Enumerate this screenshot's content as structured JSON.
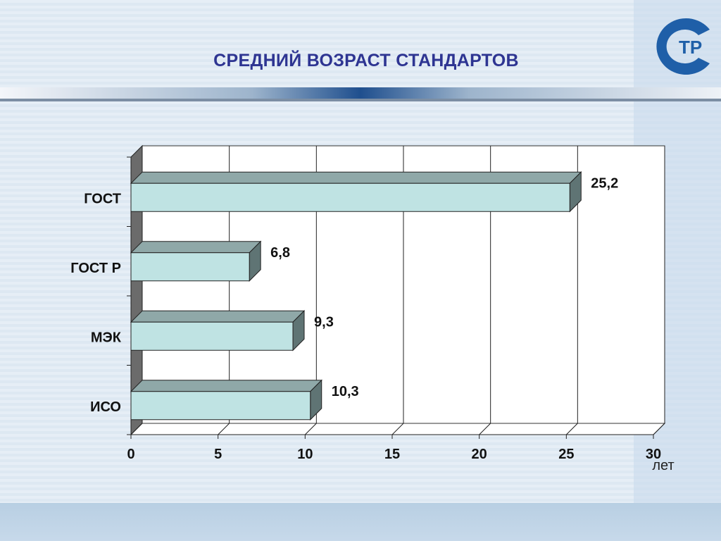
{
  "slide": {
    "title": "СРЕДНИЙ ВОЗРАСТ СТАНДАРТОВ",
    "logo_text": "ТР"
  },
  "colors": {
    "title": "#2e3592",
    "bar_front": "#bfe3e3",
    "bar_top": "#8fa8a8",
    "bar_side": "#5f7474",
    "wall_side": "#6b6b6b",
    "logo": "#1f5fa8"
  },
  "chart_data": {
    "type": "bar",
    "orientation": "horizontal",
    "categories": [
      "ГОСТ",
      "ГОСТ Р",
      "МЭК",
      "ИСО"
    ],
    "values": [
      25.2,
      6.8,
      9.3,
      10.3
    ],
    "value_labels": [
      "25,2",
      "6,8",
      "9,3",
      "10,3"
    ],
    "x_ticks": [
      "0",
      "5",
      "10",
      "15",
      "20",
      "25",
      "30"
    ],
    "xlim": [
      0,
      30
    ],
    "x_unit": "лет",
    "grid": true,
    "style": "3d"
  }
}
